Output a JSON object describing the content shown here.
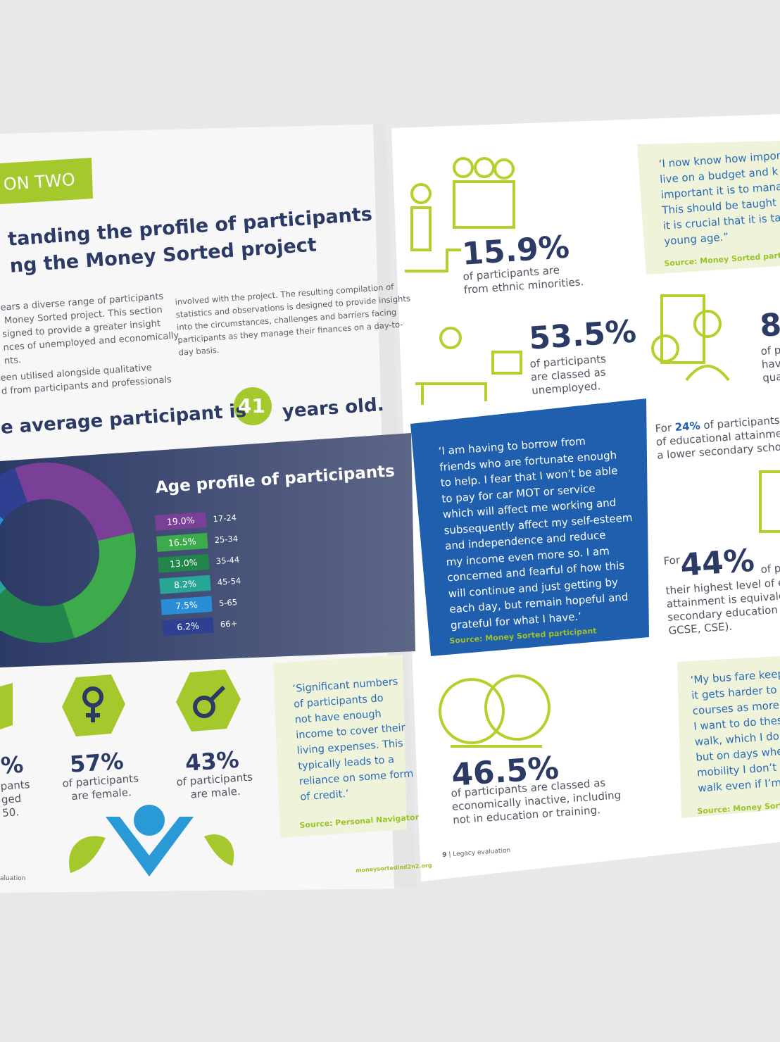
{
  "left_page": {
    "section_tag": "ON TWO",
    "heading": [
      "tanding the profile of participants",
      "ng the Money Sorted project"
    ],
    "intro_col1": [
      "ears a diverse range of participants",
      " Money Sorted project. This section",
      "signed to provide a greater insight",
      "nces of unemployed and economically",
      "nts."
    ],
    "intro_col1b": [
      "een utilised alongside qualitative",
      "d from participants and professionals"
    ],
    "intro_col2": [
      "involved with the project. The resulting compilation of",
      "statistics and observations is designed to provide insights",
      "into the circumstances, challenges and barriers facing",
      "participants as they manage their finances on a day-to-",
      "day basis."
    ],
    "average": {
      "before": "e average participant is",
      "age": "41",
      "after": "years old."
    },
    "stats": [
      {
        "value": "%",
        "lines": [
          "pants",
          "ged",
          "50."
        ]
      },
      {
        "value": "57%",
        "lines": [
          "of participants",
          "are female."
        ]
      },
      {
        "value": "43%",
        "lines": [
          "of participants",
          "are male."
        ]
      }
    ],
    "quote": {
      "lines": [
        "‘Significant numbers",
        "of participants do",
        "not have enough",
        "income to cover their",
        "living expenses. This",
        "typically leads to a",
        "reliance on some form",
        "of credit.’"
      ],
      "source": "Source: Personal Navigator"
    },
    "footer": {
      "left": "aluation",
      "right": "moneysortedind2n2.org"
    }
  },
  "chart_data": {
    "type": "pie",
    "title": "Age profile of participants",
    "categories": [
      "17-24",
      "25-34",
      "35-44",
      "45-54",
      "5-65",
      "66+"
    ],
    "values": [
      19.0,
      16.5,
      13.0,
      8.2,
      7.5,
      6.2
    ],
    "value_labels": [
      "19.0%",
      "16.5%",
      "13.0%",
      "8.2%",
      "7.5%",
      "6.2%"
    ],
    "colors": [
      "#7a3f97",
      "#3daa4c",
      "#22864a",
      "#27a697",
      "#2a8ed6",
      "#2f3f91"
    ]
  },
  "right_page": {
    "ethnic": {
      "value": "15.9%",
      "lines": [
        "of participants are",
        "from ethnic minorities."
      ]
    },
    "unemployed": {
      "value": "53.5%",
      "lines": [
        "of participants",
        "are classed as",
        "unemployed."
      ]
    },
    "qualified": {
      "value": "8",
      "lines": [
        "of p",
        "hav",
        "qua"
      ]
    },
    "quote_top": {
      "lines": [
        "‘I now know how impor",
        "live on a budget and k",
        "important it is to mana",
        "This should be taught",
        "it is crucial that it is tau",
        "young age.”"
      ],
      "source": "Source: Money Sorted partic"
    },
    "blue_quote": {
      "lines": [
        "‘I am having to borrow from",
        "friends who are fortunate enough",
        "to help. I fear that I won’t be able",
        "to pay for car MOT or service",
        "which will affect me working and",
        "subsequently affect my self-esteem",
        "and independence and reduce",
        "my income even more so. I am",
        "concerned and fearful of how this",
        "will continue and just getting by",
        "each day, but remain hopeful and",
        "grateful for what I have.’"
      ],
      "source": "Source: Money Sorted participant"
    },
    "lower_secondary": {
      "prefix": "For",
      "value": "24%",
      "first": "of participants",
      "lines": [
        "of educational attainme",
        "a lower secondary scho"
      ]
    },
    "highest": {
      "prefix": "For",
      "value": "44%",
      "suffix": "of p",
      "lines": [
        "their highest level of e",
        "attainment is equivale",
        "secondary education",
        "GCSE, CSE)."
      ]
    },
    "quote_bottom": {
      "lines": [
        "‘My bus fare keep",
        "it gets harder to",
        "courses as more",
        "I want to do thes",
        "walk, which I do",
        "but on days whe",
        "mobility I don’t",
        "walk even if I’m"
      ],
      "source": "Source: Money Sort"
    },
    "inactive": {
      "value": "46.5%",
      "lines": [
        "of participants are classed as",
        "economically inactive, including",
        "not in education or training."
      ]
    },
    "footer": {
      "page": "9",
      "title": "Legacy evaluation"
    }
  }
}
